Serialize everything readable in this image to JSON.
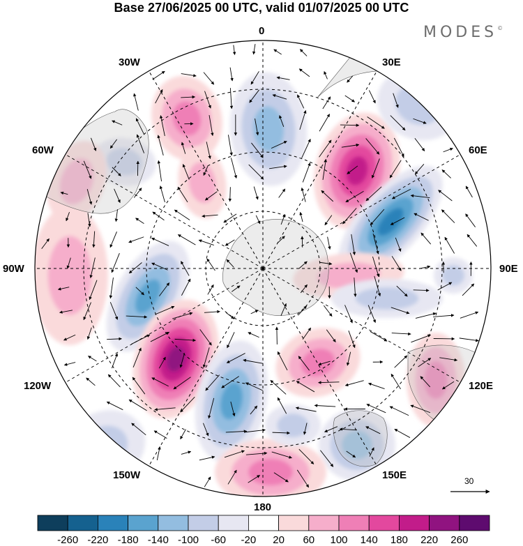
{
  "title": "Base 27/06/2025 00 UTC, valid 01/07/2025 00 UTC",
  "brand": {
    "name": "MODES",
    "mark": "©"
  },
  "longitude_labels": {
    "lon_0": "0",
    "lon_30e": "30E",
    "lon_60e": "60E",
    "lon_90e": "90E",
    "lon_120e": "120E",
    "lon_150e": "150E",
    "lon_180": "180",
    "lon_150w": "150W",
    "lon_120w": "120W",
    "lon_90w": "90W",
    "lon_60w": "60W",
    "lon_30w": "30W"
  },
  "reference_vector": {
    "label": "30"
  },
  "colorbar": {
    "labels": [
      "-260",
      "-220",
      "-180",
      "-140",
      "-100",
      "-60",
      "-20",
      "20",
      "60",
      "100",
      "140",
      "180",
      "220",
      "260"
    ],
    "colors": [
      "#0e3e5c",
      "#15618f",
      "#2a82b9",
      "#5aa3cf",
      "#93bde0",
      "#c3cde7",
      "#e7e7f2",
      "#ffffff",
      "#fadadb",
      "#f6aecb",
      "#ef7fb6",
      "#e3489e",
      "#c21c8a",
      "#901380",
      "#5e0b6f"
    ]
  },
  "map_data": {
    "projection": "south polar stereographic",
    "field": "anomaly",
    "palette_positive": "magenta",
    "palette_negative": "blue",
    "wind_vectors": true
  }
}
